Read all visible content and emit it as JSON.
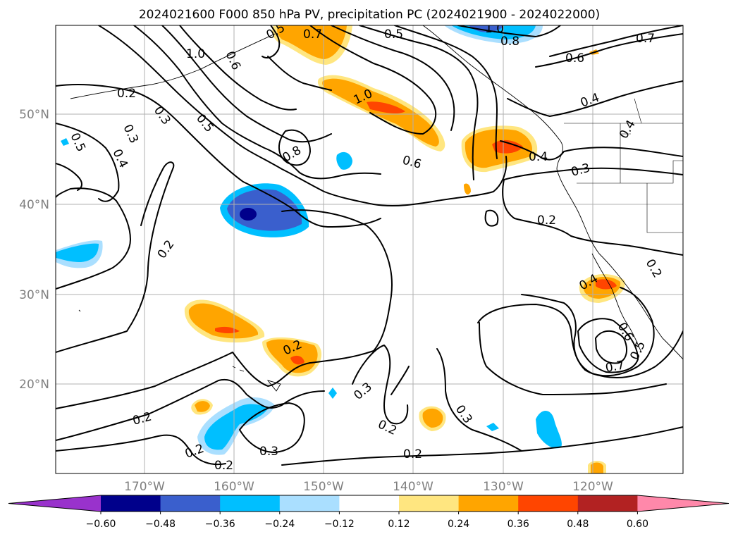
{
  "title": "2024021600 F000 850 hPa PV, precipitation PC (2024021900 - 2024022000)",
  "lat_labels": [
    "50°N",
    "40°N",
    "30°N",
    "20°N"
  ],
  "lon_labels": [
    "170°W",
    "160°W",
    "150°W",
    "140°W",
    "130°W",
    "120°W"
  ],
  "contour_labels": [
    "0.2",
    "0.3",
    "0.4",
    "0.5",
    "0.6",
    "0.7",
    "0.8",
    "1.0"
  ],
  "colorbar": {
    "ticks": [
      "−0.60",
      "−0.48",
      "−0.36",
      "−0.24",
      "−0.12",
      "0.12",
      "0.24",
      "0.36",
      "0.48",
      "0.60"
    ],
    "colors": [
      "#9932cc",
      "#00008b",
      "#3a5fcd",
      "#00bfff",
      "#aadfff",
      "#ffffff",
      "#ffe680",
      "#ffa500",
      "#ff4500",
      "#b22222",
      "#ff88aa"
    ]
  }
}
